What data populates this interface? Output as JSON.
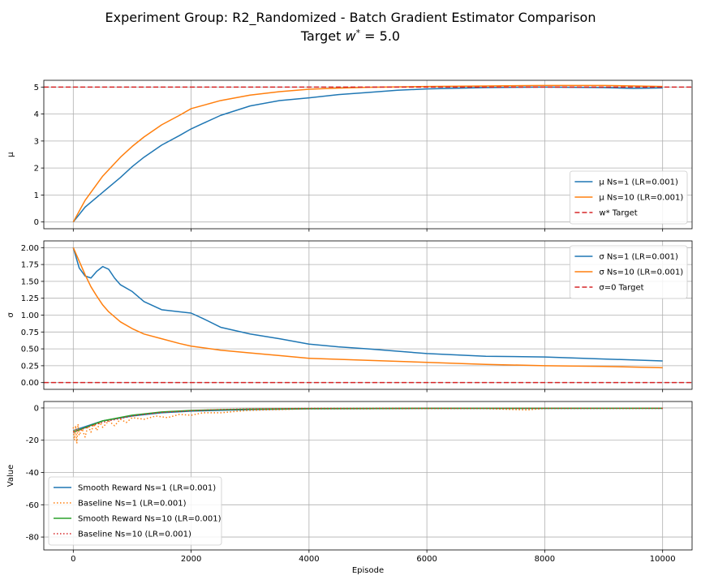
{
  "figure": {
    "title_line1": "Experiment Group: R2_Randomized - Batch Gradient Estimator Comparison",
    "title_line2": "Target w* = 5.0"
  },
  "colors": {
    "ns1": "#1f77b4",
    "ns10": "#ff7f0e",
    "target": "#d62728",
    "smooth_ns10": "#2ca02c",
    "baseline_ns10": "#d62728",
    "grid": "#b0b0b0"
  },
  "chart_data": [
    {
      "type": "line",
      "ylabel": "μ",
      "xlabel": "",
      "xlim": [
        -500,
        10500
      ],
      "ylim": [
        -0.25,
        5.25
      ],
      "xticks": [
        0,
        2000,
        4000,
        6000,
        8000,
        10000
      ],
      "yticks": [
        0,
        1,
        2,
        3,
        4,
        5
      ],
      "xtick_labels_visible": false,
      "grid": true,
      "legend_position": "lower-right",
      "series": [
        {
          "name": "μ Ns=1 (LR=0.001)",
          "style": "solid",
          "color_key": "ns1",
          "x": [
            0,
            200,
            500,
            800,
            1000,
            1200,
            1500,
            1800,
            2000,
            2200,
            2500,
            3000,
            3500,
            4000,
            4500,
            5000,
            5500,
            6000,
            7000,
            8000,
            9000,
            9500,
            10000
          ],
          "y": [
            0.0,
            0.55,
            1.1,
            1.65,
            2.05,
            2.4,
            2.85,
            3.2,
            3.45,
            3.65,
            3.95,
            4.3,
            4.5,
            4.6,
            4.72,
            4.8,
            4.88,
            4.93,
            4.98,
            5.0,
            4.98,
            4.95,
            4.97
          ]
        },
        {
          "name": "μ Ns=10 (LR=0.001)",
          "style": "solid",
          "color_key": "ns10",
          "x": [
            0,
            200,
            500,
            800,
            1000,
            1200,
            1500,
            1800,
            2000,
            2500,
            3000,
            3500,
            4000,
            4500,
            5000,
            6000,
            7000,
            8000,
            9000,
            10000
          ],
          "y": [
            0.0,
            0.8,
            1.7,
            2.4,
            2.8,
            3.15,
            3.6,
            3.95,
            4.2,
            4.5,
            4.7,
            4.83,
            4.92,
            4.96,
            4.99,
            5.02,
            5.04,
            5.06,
            5.06,
            5.02
          ]
        },
        {
          "name": "w* Target",
          "style": "dashed",
          "color_key": "target",
          "hline": 5.0
        }
      ]
    },
    {
      "type": "line",
      "ylabel": "σ",
      "xlabel": "",
      "xlim": [
        -500,
        10500
      ],
      "ylim": [
        -0.1,
        2.1
      ],
      "xticks": [
        0,
        2000,
        4000,
        6000,
        8000,
        10000
      ],
      "yticks": [
        0.0,
        0.25,
        0.5,
        0.75,
        1.0,
        1.25,
        1.5,
        1.75,
        2.0
      ],
      "ytick_labels": [
        "0.00",
        "0.25",
        "0.50",
        "0.75",
        "1.00",
        "1.25",
        "1.50",
        "1.75",
        "2.00"
      ],
      "xtick_labels_visible": false,
      "grid": true,
      "legend_position": "upper-right",
      "series": [
        {
          "name": "σ Ns=1 (LR=0.001)",
          "style": "solid",
          "color_key": "ns1",
          "x": [
            0,
            100,
            200,
            300,
            400,
            500,
            600,
            700,
            800,
            1000,
            1200,
            1500,
            1800,
            2000,
            2200,
            2500,
            3000,
            3500,
            4000,
            4500,
            5000,
            6000,
            7000,
            8000,
            9000,
            10000
          ],
          "y": [
            2.0,
            1.7,
            1.58,
            1.55,
            1.65,
            1.72,
            1.68,
            1.55,
            1.45,
            1.35,
            1.2,
            1.08,
            1.05,
            1.03,
            0.95,
            0.82,
            0.72,
            0.65,
            0.57,
            0.53,
            0.5,
            0.43,
            0.39,
            0.38,
            0.35,
            0.32
          ]
        },
        {
          "name": "σ Ns=10 (LR=0.001)",
          "style": "solid",
          "color_key": "ns10",
          "x": [
            0,
            100,
            200,
            300,
            400,
            500,
            600,
            800,
            1000,
            1200,
            1500,
            1800,
            2000,
            2500,
            3000,
            3500,
            4000,
            5000,
            6000,
            7000,
            8000,
            9000,
            10000
          ],
          "y": [
            2.0,
            1.8,
            1.6,
            1.42,
            1.28,
            1.15,
            1.05,
            0.9,
            0.8,
            0.72,
            0.65,
            0.58,
            0.54,
            0.48,
            0.44,
            0.4,
            0.36,
            0.33,
            0.3,
            0.27,
            0.25,
            0.24,
            0.22
          ]
        },
        {
          "name": "σ=0 Target",
          "style": "dashed",
          "color_key": "target",
          "hline": 0.0
        }
      ]
    },
    {
      "type": "line",
      "ylabel": "Value",
      "xlabel": "Episode",
      "xlim": [
        -500,
        10500
      ],
      "ylim": [
        -88,
        4
      ],
      "xticks": [
        0,
        2000,
        4000,
        6000,
        8000,
        10000
      ],
      "yticks": [
        0,
        -20,
        -40,
        -60,
        -80
      ],
      "xtick_labels_visible": true,
      "grid": true,
      "legend_position": "lower-left",
      "series": [
        {
          "name": "Smooth Reward Ns=1 (LR=0.001)",
          "style": "solid",
          "color_key": "ns1",
          "x": [
            0,
            500,
            1000,
            1500,
            2000,
            3000,
            4000,
            6000,
            8000,
            10000
          ],
          "y": [
            -14,
            -8,
            -5,
            -3,
            -2,
            -1,
            -0.5,
            -0.3,
            -0.3,
            -0.2
          ]
        },
        {
          "name": "Baseline Ns=1 (LR=0.001)",
          "style": "dotted",
          "color_key": "ns10",
          "x": [
            0,
            20,
            40,
            60,
            80,
            100,
            150,
            200,
            250,
            300,
            350,
            400,
            450,
            500,
            600,
            700,
            800,
            900,
            1000,
            1200,
            1400,
            1600,
            1800,
            2000,
            2200,
            2500,
            2800,
            3000,
            3500,
            4000,
            5000,
            6000,
            7000,
            7700,
            8000,
            9000,
            10000
          ],
          "y": [
            -12,
            -20,
            -11,
            -22,
            -10,
            -17,
            -13,
            -18,
            -11,
            -15,
            -10,
            -14,
            -9,
            -12,
            -8,
            -11,
            -7,
            -9,
            -6,
            -7,
            -5,
            -6,
            -4,
            -4.5,
            -3,
            -3,
            -2,
            -1.5,
            -1,
            -0.5,
            -0.5,
            -0.4,
            -0.4,
            -1.2,
            -0.3,
            -0.3,
            -0.2
          ]
        },
        {
          "name": "Smooth Reward Ns=10 (LR=0.001)",
          "style": "solid",
          "color_key": "smooth_ns10",
          "x": [
            0,
            500,
            1000,
            1500,
            2000,
            3000,
            4000,
            6000,
            8000,
            10000
          ],
          "y": [
            -15,
            -8,
            -4.5,
            -2.5,
            -1.5,
            -0.7,
            -0.4,
            -0.2,
            -0.2,
            -0.2
          ]
        },
        {
          "name": "Baseline Ns=10 (LR=0.001)",
          "style": "dotted",
          "color_key": "baseline_ns10",
          "x": [
            0,
            200,
            400,
            600,
            800,
            1000,
            1200,
            1500,
            2000,
            2500,
            3000,
            4000,
            6000,
            8000,
            10000
          ],
          "y": [
            -15,
            -12.5,
            -10,
            -8,
            -6.5,
            -5,
            -4,
            -2.8,
            -1.7,
            -1,
            -0.6,
            -0.3,
            -0.2,
            -0.2,
            -0.2
          ]
        }
      ]
    }
  ]
}
